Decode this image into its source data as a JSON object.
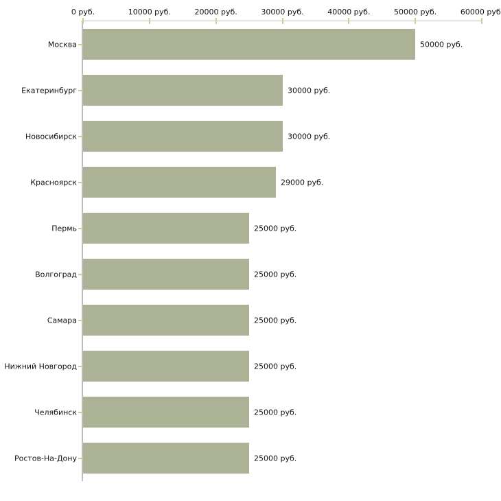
{
  "chart_data": {
    "type": "bar",
    "orientation": "horizontal",
    "title": "",
    "xlabel": "",
    "ylabel": "",
    "xlim": [
      0,
      60000
    ],
    "grid": false,
    "legend": null,
    "categories": [
      "Москва",
      "Екатеринбург",
      "Новосибирск",
      "Красноярск",
      "Пермь",
      "Волгоград",
      "Самара",
      "Нижний Новгород",
      "Челябинск",
      "Ростов-На-Дону"
    ],
    "values": [
      50000,
      30000,
      30000,
      29000,
      25000,
      25000,
      25000,
      25000,
      25000,
      25000
    ],
    "value_labels": [
      "50000 руб.",
      "30000 руб.",
      "30000 руб.",
      "29000 руб.",
      "25000 руб.",
      "25000 руб.",
      "25000 руб.",
      "25000 руб.",
      "25000 руб.",
      "25000 руб."
    ],
    "x_tick_values": [
      0,
      10000,
      20000,
      30000,
      40000,
      50000,
      60000
    ],
    "x_tick_labels": [
      "0 руб.",
      "10000 руб.",
      "20000 руб.",
      "30000 руб.",
      "40000 руб.",
      "50000 руб.",
      "60000 руб."
    ],
    "colors": {
      "bar": "#abb295",
      "axis_line": "#bdbdbd",
      "tick_mark": "#cccc99",
      "text": "#111111",
      "background": "#ffffff"
    }
  }
}
